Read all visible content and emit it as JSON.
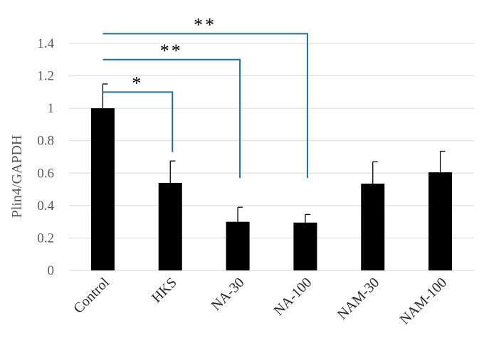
{
  "chart_data": {
    "type": "bar",
    "ylabel": "Plin4/GAPDH",
    "ylim": [
      0,
      1.4
    ],
    "ytick_step": 0.2,
    "yticks": [
      "0",
      "0.2",
      "0.4",
      "0.6",
      "0.8",
      "1",
      "1.2",
      "1.4"
    ],
    "grid": true,
    "categories": [
      "Control",
      "HKS",
      "NA-30",
      "NA-100",
      "NAM-30",
      "NAM-100"
    ],
    "values": [
      1.0,
      0.54,
      0.3,
      0.295,
      0.535,
      0.605
    ],
    "errors": [
      0.15,
      0.135,
      0.09,
      0.05,
      0.135,
      0.13
    ],
    "bar_color": "#000000",
    "significance": [
      {
        "from": 0,
        "to": 1,
        "y_top": 1.1,
        "y_drop": 0.73,
        "label": "*"
      },
      {
        "from": 0,
        "to": 2,
        "y_top": 1.3,
        "y_drop": 0.57,
        "label": "**"
      },
      {
        "from": 0,
        "to": 3,
        "y_top": 1.46,
        "y_drop": 0.57,
        "label": "**"
      }
    ],
    "bracket_color": "#1f6f9f"
  }
}
